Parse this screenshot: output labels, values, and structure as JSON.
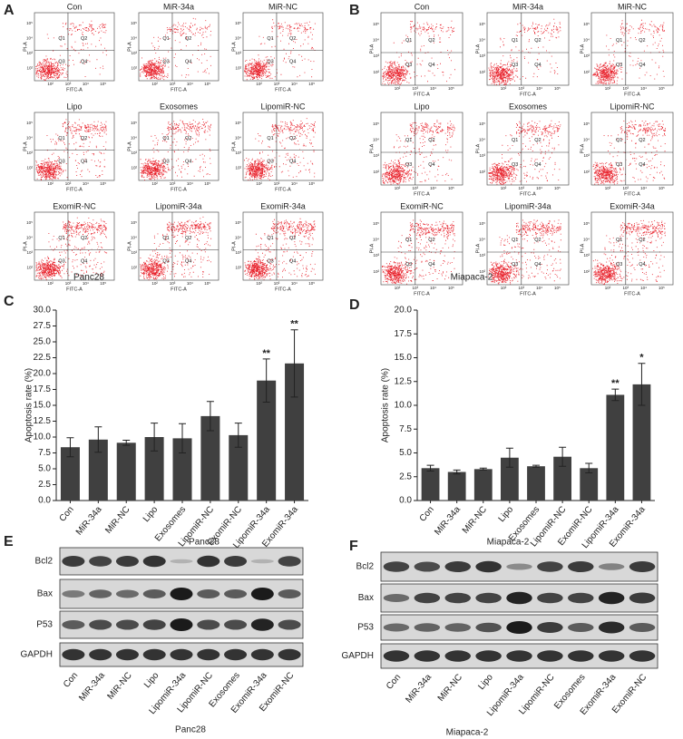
{
  "panel_labels": [
    "A",
    "B",
    "C",
    "D",
    "E",
    "F"
  ],
  "flow_axes": {
    "x_label": "FITC-A",
    "y_label": "PI-A",
    "ticks": [
      "10²",
      "10³",
      "10⁴",
      "10⁵"
    ],
    "quadrants": [
      "Q1",
      "Q2",
      "Q3",
      "Q4"
    ]
  },
  "flow": [
    {
      "caption": "Panc28",
      "plots": [
        "Con",
        "MiR-34a",
        "MiR-NC",
        "Lipo",
        "Exosomes",
        "LipomiR-NC",
        "ExomiR-NC",
        "LipomiR-34a",
        "ExomiR-34a"
      ]
    },
    {
      "caption": "Miapaca-2",
      "plots": [
        "Con",
        "MiR-34a",
        "MiR-NC",
        "Lipo",
        "Exosomes",
        "LipomiR-NC",
        "ExomiR-NC",
        "LipomiR-34a",
        "ExomiR-34a"
      ]
    }
  ],
  "chart_data": [
    {
      "type": "bar",
      "ylabel": "Apoptosis rate (%)",
      "xlabel": "Panc28",
      "color": "#404040",
      "categories": [
        "Con",
        "MiR-34a",
        "MiR-NC",
        "Lipo",
        "Exosomes",
        "LipomiR-NC",
        "ExomiR-NC",
        "LipomiR-34a",
        "ExomiR-34a"
      ],
      "values": [
        8.4,
        9.6,
        9.1,
        10.0,
        9.8,
        13.3,
        10.3,
        18.9,
        21.6
      ],
      "errors": [
        1.5,
        2.0,
        0.4,
        2.2,
        2.3,
        2.3,
        1.9,
        3.4,
        5.3
      ],
      "significance": [
        null,
        null,
        null,
        null,
        null,
        null,
        null,
        "**",
        "**"
      ],
      "ylim": [
        0,
        30
      ],
      "yticks": [
        {
          "value": 0,
          "label": "0.0"
        },
        2.5,
        {
          "value": 5,
          "label": "5.0"
        },
        7.5,
        {
          "value": 10,
          "label": "10.0"
        },
        12.5,
        {
          "value": 15,
          "label": "15.0"
        },
        17.5,
        {
          "value": 20,
          "label": "20.0"
        },
        22.5,
        {
          "value": 25,
          "label": "25.0"
        },
        27.5,
        {
          "value": 30,
          "label": "30.0"
        }
      ]
    },
    {
      "type": "bar",
      "ylabel": "Apoptosis rate (%)",
      "xlabel": "Miapaca-2",
      "color": "#404040",
      "categories": [
        "Con",
        "MiR-34a",
        "MiR-NC",
        "Lipo",
        "Exosomes",
        "LipomiR-NC",
        "ExomiR-NC",
        "LipomiR-34a",
        "ExomiR-34a"
      ],
      "values": [
        3.4,
        3.0,
        3.3,
        4.5,
        3.6,
        4.6,
        3.4,
        11.1,
        12.2
      ],
      "errors": [
        0.3,
        0.2,
        0.1,
        1.0,
        0.1,
        1.0,
        0.5,
        0.6,
        2.2
      ],
      "significance": [
        null,
        null,
        null,
        null,
        null,
        null,
        null,
        "**",
        "*"
      ],
      "ylim": [
        0,
        20
      ],
      "yticks": [
        {
          "value": 0,
          "label": "0.0"
        },
        2.5,
        {
          "value": 5,
          "label": "5.0"
        },
        7.5,
        {
          "value": 10,
          "label": "10.0"
        },
        12.5,
        {
          "value": 15,
          "label": "15.0"
        },
        17.5,
        {
          "value": 20,
          "label": "20.0"
        }
      ]
    }
  ],
  "blots": [
    {
      "caption": "Panc28",
      "rows": [
        "Bcl2",
        "Bax",
        "P53",
        "GAPDH"
      ],
      "lanes": [
        "Con",
        "MiR-34a",
        "MiR-NC",
        "Lipo",
        "LipomiR-34a",
        "LipomiR-NC",
        "Exosomes",
        "ExomiR-34a",
        "ExomiR-NC"
      ]
    },
    {
      "caption": "Miapaca-2",
      "rows": [
        "Bcl2",
        "Bax",
        "P53",
        "GAPDH"
      ],
      "lanes": [
        "Con",
        "MiR-34a",
        "MiR-NC",
        "Lipo",
        "LipomiR-34a",
        "LipomiR-NC",
        "Exosomes",
        "ExomiR-34a",
        "ExomiR-NC"
      ]
    }
  ]
}
